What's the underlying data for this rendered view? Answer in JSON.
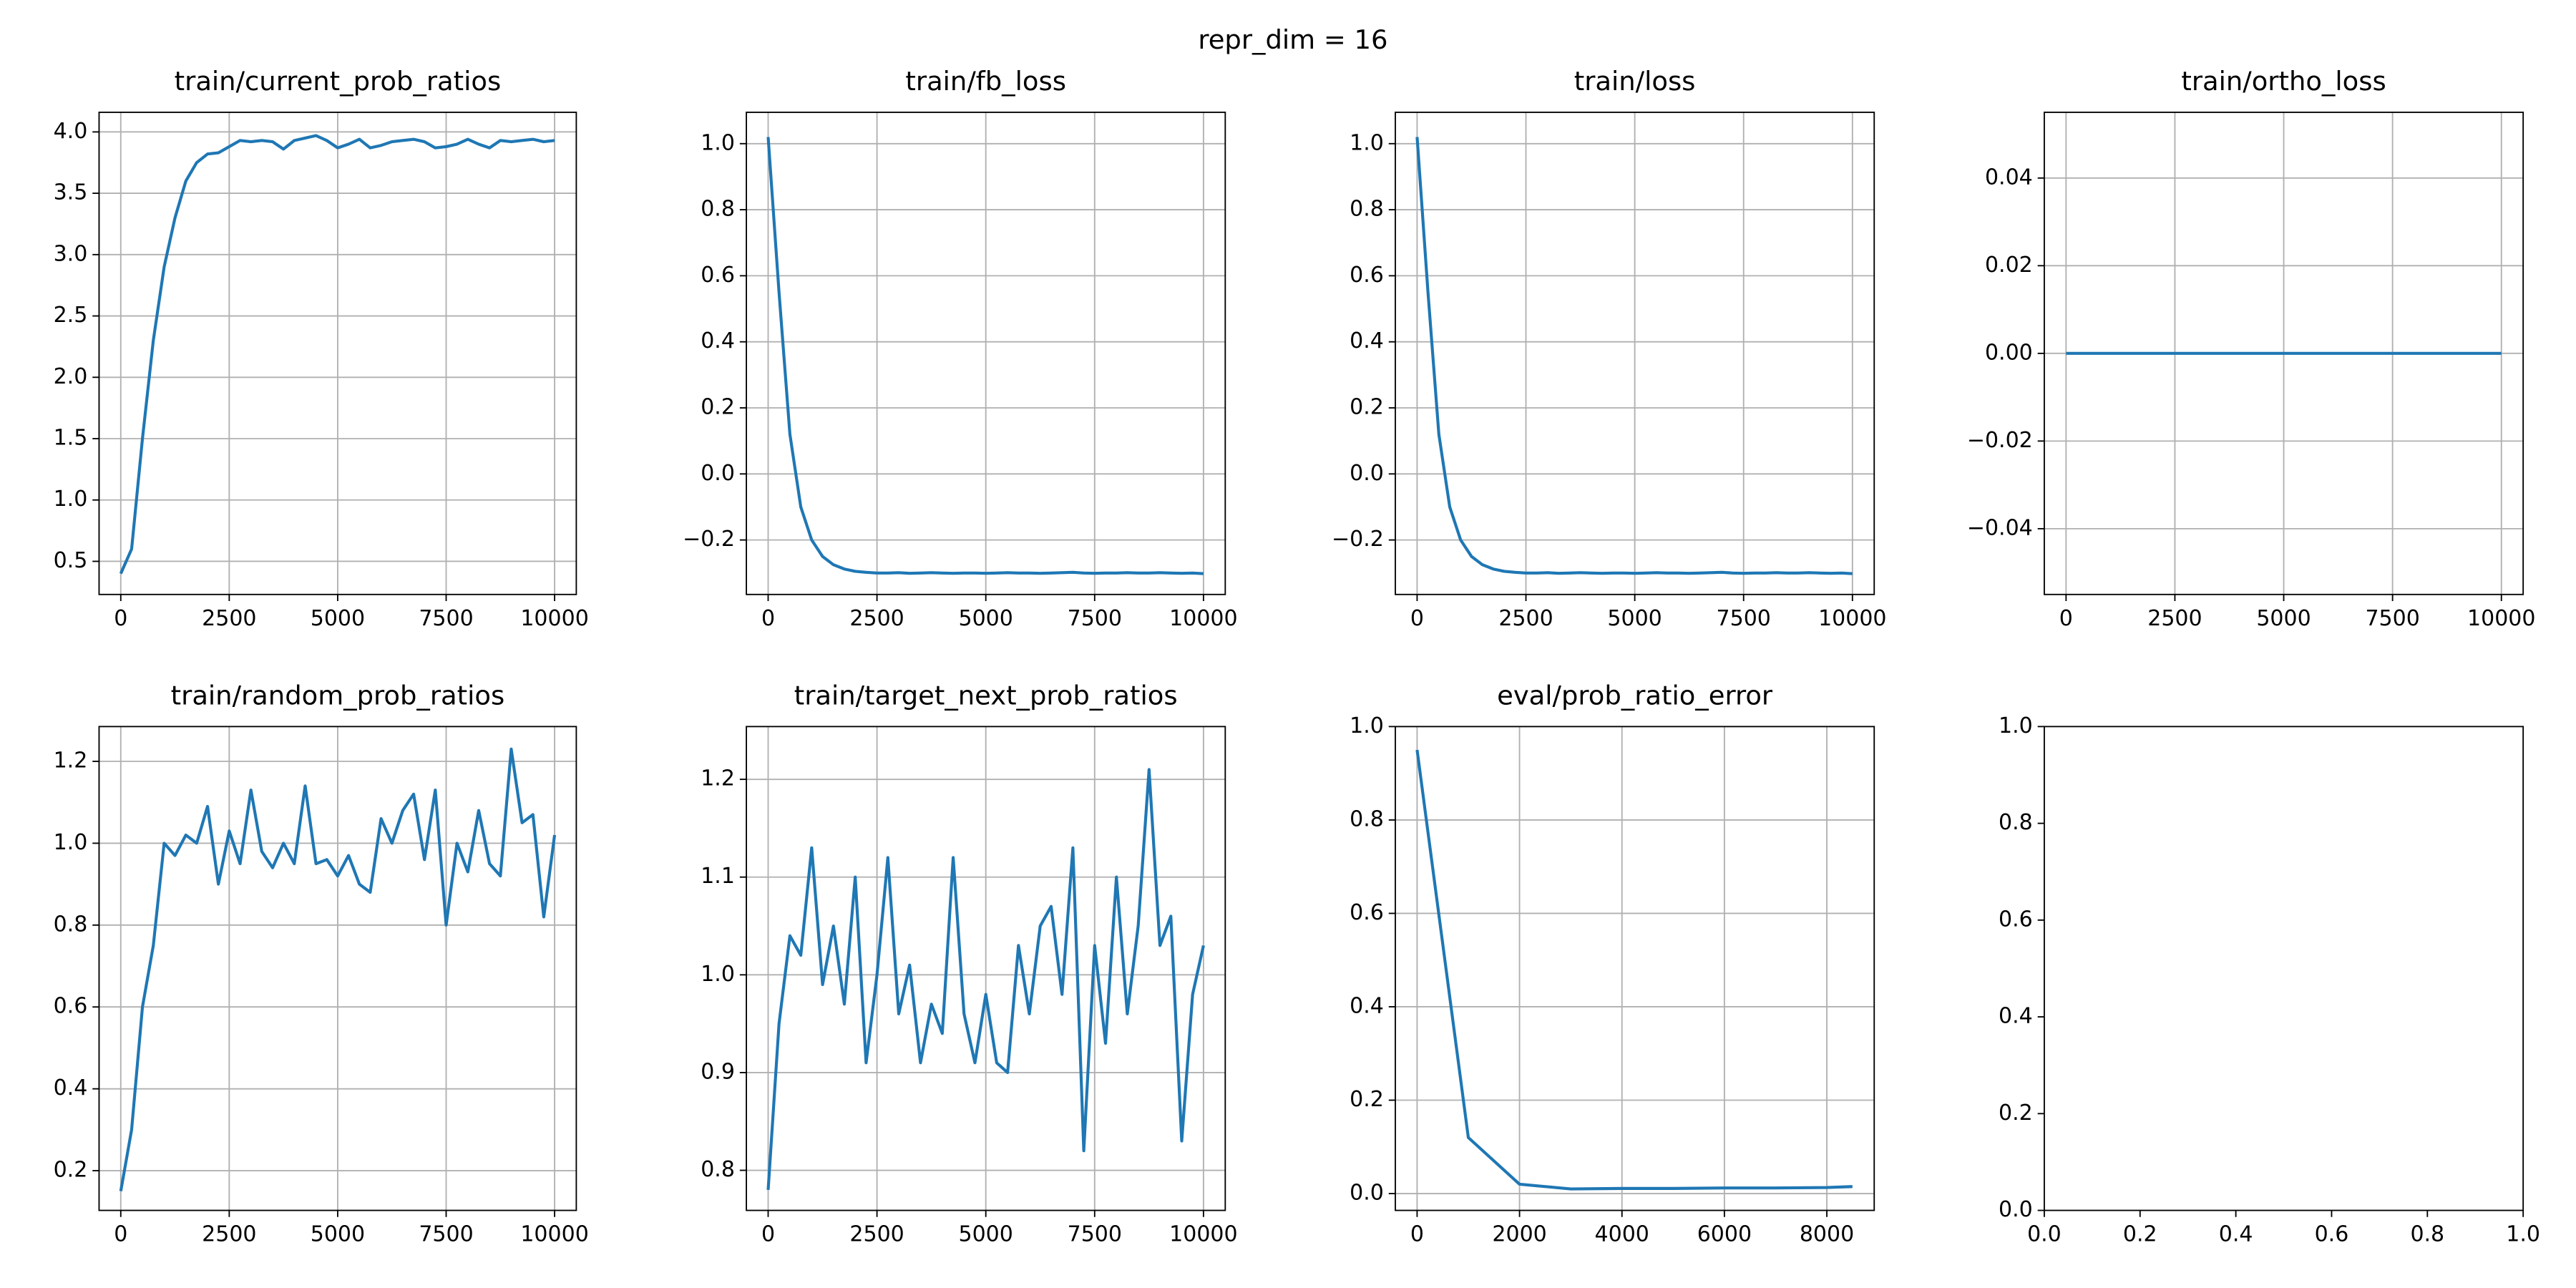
{
  "title": "repr_dim = 16",
  "chart_data": [
    {
      "type": "line",
      "title": "train/current_prob_ratios",
      "x": [
        0,
        250,
        500,
        750,
        1000,
        1250,
        1500,
        1750,
        2000,
        2250,
        2500,
        2750,
        3000,
        3250,
        3500,
        3750,
        4000,
        4250,
        4500,
        4750,
        5000,
        5250,
        5500,
        5750,
        6000,
        6250,
        6500,
        6750,
        7000,
        7250,
        7500,
        7750,
        8000,
        8250,
        8500,
        8750,
        9000,
        9250,
        9500,
        9750,
        10000
      ],
      "values": [
        0.4,
        0.6,
        1.5,
        2.3,
        2.9,
        3.3,
        3.6,
        3.75,
        3.82,
        3.83,
        3.88,
        3.93,
        3.92,
        3.93,
        3.92,
        3.86,
        3.93,
        3.95,
        3.97,
        3.93,
        3.87,
        3.9,
        3.94,
        3.87,
        3.89,
        3.92,
        3.93,
        3.94,
        3.92,
        3.87,
        3.88,
        3.9,
        3.94,
        3.9,
        3.87,
        3.93,
        3.92,
        3.93,
        3.94,
        3.92,
        3.93
      ],
      "color": "#1f77b4",
      "xlim": [
        -500,
        10500
      ],
      "ylim": [
        0.23,
        4.16
      ],
      "xticks": [
        0,
        2500,
        5000,
        7500,
        10000
      ],
      "yticks": [
        0.5,
        {
          "value": 1,
          "label": "1.0"
        },
        1.5,
        {
          "value": 2,
          "label": "2.0"
        },
        2.5,
        {
          "value": 3,
          "label": "3.0"
        },
        3.5,
        {
          "value": 4,
          "label": "4.0"
        }
      ],
      "grid": true
    },
    {
      "type": "line",
      "title": "train/fb_loss",
      "x": [
        0,
        250,
        500,
        750,
        1000,
        1250,
        1500,
        1750,
        2000,
        2250,
        2500,
        2750,
        3000,
        3250,
        3500,
        3750,
        4000,
        4250,
        4500,
        4750,
        5000,
        5250,
        5500,
        5750,
        6000,
        6250,
        6500,
        6750,
        7000,
        7250,
        7500,
        7750,
        8000,
        8250,
        8500,
        8750,
        9000,
        9250,
        9500,
        9750,
        10000
      ],
      "values": [
        1.02,
        0.55,
        0.12,
        -0.1,
        -0.2,
        -0.25,
        -0.275,
        -0.288,
        -0.295,
        -0.298,
        -0.3,
        -0.3,
        -0.299,
        -0.301,
        -0.3,
        -0.299,
        -0.3,
        -0.301,
        -0.3,
        -0.3,
        -0.301,
        -0.3,
        -0.299,
        -0.3,
        -0.3,
        -0.301,
        -0.3,
        -0.299,
        -0.298,
        -0.3,
        -0.301,
        -0.3,
        -0.3,
        -0.299,
        -0.3,
        -0.3,
        -0.299,
        -0.3,
        -0.301,
        -0.3,
        -0.302
      ],
      "color": "#1f77b4",
      "xlim": [
        -500,
        10500
      ],
      "ylim": [
        -0.365,
        1.095
      ],
      "xticks": [
        0,
        2500,
        5000,
        7500,
        10000
      ],
      "yticks": [
        {
          "value": -0.2,
          "label": "−0.2"
        },
        {
          "value": 0,
          "label": "0.0"
        },
        0.2,
        0.4,
        0.6,
        0.8,
        {
          "value": 1,
          "label": "1.0"
        }
      ],
      "grid": true
    },
    {
      "type": "line",
      "title": "train/loss",
      "x": [
        0,
        250,
        500,
        750,
        1000,
        1250,
        1500,
        1750,
        2000,
        2250,
        2500,
        2750,
        3000,
        3250,
        3500,
        3750,
        4000,
        4250,
        4500,
        4750,
        5000,
        5250,
        5500,
        5750,
        6000,
        6250,
        6500,
        6750,
        7000,
        7250,
        7500,
        7750,
        8000,
        8250,
        8500,
        8750,
        9000,
        9250,
        9500,
        9750,
        10000
      ],
      "values": [
        1.02,
        0.55,
        0.12,
        -0.1,
        -0.2,
        -0.25,
        -0.275,
        -0.288,
        -0.295,
        -0.298,
        -0.3,
        -0.3,
        -0.299,
        -0.301,
        -0.3,
        -0.299,
        -0.3,
        -0.301,
        -0.3,
        -0.3,
        -0.301,
        -0.3,
        -0.299,
        -0.3,
        -0.3,
        -0.301,
        -0.3,
        -0.299,
        -0.298,
        -0.3,
        -0.301,
        -0.3,
        -0.3,
        -0.299,
        -0.3,
        -0.3,
        -0.299,
        -0.3,
        -0.301,
        -0.3,
        -0.302
      ],
      "color": "#1f77b4",
      "xlim": [
        -500,
        10500
      ],
      "ylim": [
        -0.365,
        1.095
      ],
      "xticks": [
        0,
        2500,
        5000,
        7500,
        10000
      ],
      "yticks": [
        {
          "value": -0.2,
          "label": "−0.2"
        },
        {
          "value": 0,
          "label": "0.0"
        },
        0.2,
        0.4,
        0.6,
        0.8,
        {
          "value": 1,
          "label": "1.0"
        }
      ],
      "grid": true
    },
    {
      "type": "line",
      "title": "train/ortho_loss",
      "x": [
        0,
        10000
      ],
      "values": [
        0,
        0
      ],
      "color": "#1f77b4",
      "xlim": [
        -500,
        10500
      ],
      "ylim": [
        -0.055,
        0.055
      ],
      "xticks": [
        0,
        2500,
        5000,
        7500,
        10000
      ],
      "yticks": [
        {
          "value": -0.04,
          "label": "−0.04"
        },
        {
          "value": -0.02,
          "label": "−0.02"
        },
        {
          "value": 0,
          "label": "0.00"
        },
        0.02,
        0.04
      ],
      "grid": true
    },
    {
      "type": "line",
      "title": "train/random_prob_ratios",
      "x": [
        0,
        250,
        500,
        750,
        1000,
        1250,
        1500,
        1750,
        2000,
        2250,
        2500,
        2750,
        3000,
        3250,
        3500,
        3750,
        4000,
        4250,
        4500,
        4750,
        5000,
        5250,
        5500,
        5750,
        6000,
        6250,
        6500,
        6750,
        7000,
        7250,
        7500,
        7750,
        8000,
        8250,
        8500,
        8750,
        9000,
        9250,
        9500,
        9750,
        10000
      ],
      "values": [
        0.15,
        0.3,
        0.6,
        0.75,
        1.0,
        0.97,
        1.02,
        1.0,
        1.09,
        0.9,
        1.03,
        0.95,
        1.13,
        0.98,
        0.94,
        1.0,
        0.95,
        1.14,
        0.95,
        0.96,
        0.92,
        0.97,
        0.9,
        0.88,
        1.06,
        1.0,
        1.08,
        1.12,
        0.96,
        1.13,
        0.8,
        1.0,
        0.93,
        1.08,
        0.95,
        0.92,
        1.23,
        1.05,
        1.07,
        0.82,
        1.02
      ],
      "color": "#1f77b4",
      "xlim": [
        -500,
        10500
      ],
      "ylim": [
        0.103,
        1.285
      ],
      "xticks": [
        0,
        2500,
        5000,
        7500,
        10000
      ],
      "yticks": [
        0.2,
        0.4,
        0.6,
        0.8,
        {
          "value": 1,
          "label": "1.0"
        },
        1.2
      ],
      "grid": true
    },
    {
      "type": "line",
      "title": "train/target_next_prob_ratios",
      "x": [
        0,
        250,
        500,
        750,
        1000,
        1250,
        1500,
        1750,
        2000,
        2250,
        2500,
        2750,
        3000,
        3250,
        3500,
        3750,
        4000,
        4250,
        4500,
        4750,
        5000,
        5250,
        5500,
        5750,
        6000,
        6250,
        6500,
        6750,
        7000,
        7250,
        7500,
        7750,
        8000,
        8250,
        8500,
        8750,
        9000,
        9250,
        9500,
        9750,
        10000
      ],
      "values": [
        0.78,
        0.95,
        1.04,
        1.02,
        1.13,
        0.99,
        1.05,
        0.97,
        1.1,
        0.91,
        1.0,
        1.12,
        0.96,
        1.01,
        0.91,
        0.97,
        0.94,
        1.12,
        0.96,
        0.91,
        0.98,
        0.91,
        0.9,
        1.03,
        0.96,
        1.05,
        1.07,
        0.98,
        1.13,
        0.82,
        1.03,
        0.93,
        1.1,
        0.96,
        1.05,
        1.21,
        1.03,
        1.06,
        0.83,
        0.98,
        1.03
      ],
      "color": "#1f77b4",
      "xlim": [
        -500,
        10500
      ],
      "ylim": [
        0.759,
        1.254
      ],
      "xticks": [
        0,
        2500,
        5000,
        7500,
        10000
      ],
      "yticks": [
        0.8,
        0.9,
        {
          "value": 1,
          "label": "1.0"
        },
        1.1,
        1.2
      ],
      "grid": true
    },
    {
      "type": "line",
      "title": "eval/prob_ratio_error",
      "x": [
        0,
        1000,
        2000,
        3000,
        4000,
        5000,
        6000,
        7000,
        8000,
        8500
      ],
      "values": [
        0.95,
        0.12,
        0.02,
        0.01,
        0.011,
        0.011,
        0.012,
        0.012,
        0.013,
        0.015
      ],
      "color": "#1f77b4",
      "xlim": [
        -425,
        8925
      ],
      "ylim": [
        -0.036,
        1.0
      ],
      "xticks": [
        0,
        2000,
        4000,
        6000,
        8000
      ],
      "yticks": [
        {
          "value": 0,
          "label": "0.0"
        },
        0.2,
        0.4,
        0.6,
        0.8,
        {
          "value": 1,
          "label": "1.0"
        }
      ],
      "grid": true
    },
    {
      "type": "line",
      "xlim": [
        0,
        1
      ],
      "ylim": [
        0,
        1
      ],
      "xticks": [
        {
          "value": 0,
          "label": "0.0"
        },
        0.2,
        0.4,
        0.6,
        0.8,
        {
          "value": 1,
          "label": "1.0"
        }
      ],
      "yticks": [
        {
          "value": 0,
          "label": "0.0"
        },
        0.2,
        0.4,
        0.6,
        0.8,
        {
          "value": 1,
          "label": "1.0"
        }
      ],
      "grid": false
    }
  ]
}
